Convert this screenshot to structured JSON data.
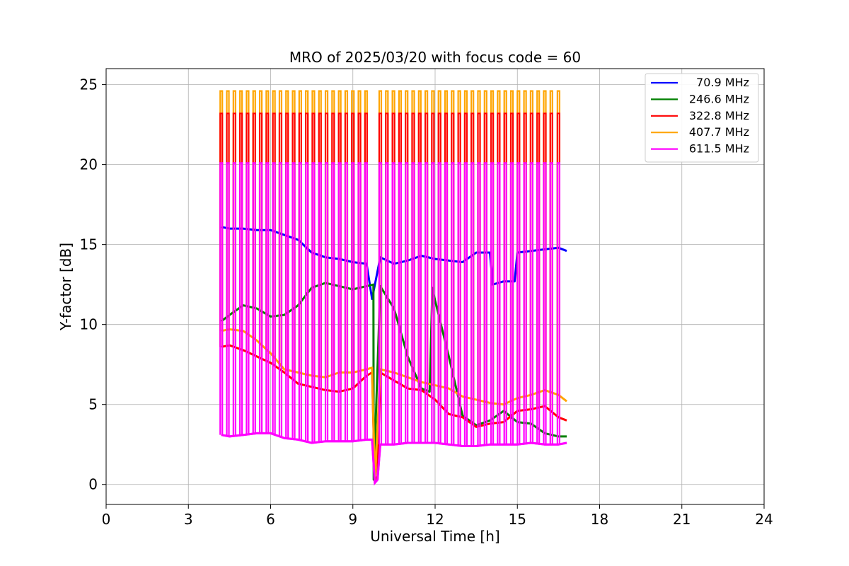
{
  "chart_data": {
    "type": "line",
    "title": "MRO of 2025/03/20 with focus code = 60",
    "xlabel": "Universal Time [h]",
    "ylabel": "Y-factor [dB]",
    "xlim": [
      0,
      24
    ],
    "ylim": [
      -1.25,
      26
    ],
    "xticks": [
      0,
      3,
      6,
      9,
      12,
      15,
      18,
      21,
      24
    ],
    "yticks": [
      0,
      5,
      10,
      15,
      20,
      25
    ],
    "grid": true,
    "legend_position": "top-right",
    "series": [
      {
        "name": "70.9 MHz",
        "color": "#0000ff",
        "x": [
          4.2,
          4.5,
          5.0,
          5.5,
          6.0,
          6.5,
          7.0,
          7.5,
          8.0,
          8.5,
          9.0,
          9.5,
          9.7,
          10.0,
          10.5,
          11.0,
          11.5,
          12.0,
          12.5,
          13.0,
          13.5,
          14.0,
          14.1,
          14.5,
          14.9,
          15.0,
          15.5,
          16.0,
          16.5,
          16.8
        ],
        "y": [
          16.1,
          16.0,
          16.0,
          15.9,
          15.9,
          15.6,
          15.3,
          14.5,
          14.2,
          14.1,
          13.9,
          13.8,
          11.6,
          14.2,
          13.8,
          14.0,
          14.3,
          14.1,
          14.0,
          13.9,
          14.5,
          14.5,
          12.5,
          12.7,
          12.7,
          14.5,
          14.6,
          14.7,
          14.8,
          14.6
        ]
      },
      {
        "name": "246.6 MHz",
        "color": "#008000",
        "x": [
          4.2,
          4.5,
          5.0,
          5.5,
          6.0,
          6.5,
          7.0,
          7.5,
          8.0,
          8.5,
          9.0,
          9.5,
          9.75,
          9.76,
          10.0,
          10.5,
          11.0,
          11.5,
          11.8,
          11.9,
          12.0,
          12.5,
          13.0,
          13.5,
          14.0,
          14.5,
          15.0,
          15.5,
          16.0,
          16.5,
          16.8
        ],
        "y": [
          10.2,
          10.6,
          11.2,
          11.0,
          10.5,
          10.6,
          11.2,
          12.3,
          12.6,
          12.4,
          12.2,
          12.4,
          12.5,
          0.3,
          12.4,
          11.0,
          8.0,
          6.0,
          5.8,
          12.3,
          11.5,
          8.0,
          4.3,
          3.7,
          4.0,
          4.6,
          3.9,
          3.8,
          3.2,
          3.0,
          3.0
        ]
      },
      {
        "name": "322.8 MHz",
        "color": "#ff0000",
        "x": [
          4.2,
          4.5,
          5.0,
          5.5,
          6.0,
          6.5,
          7.0,
          7.5,
          8.0,
          8.5,
          9.0,
          9.5,
          9.7,
          9.8,
          9.9,
          10.0,
          10.5,
          11.0,
          11.5,
          12.0,
          12.5,
          13.0,
          13.5,
          14.0,
          14.5,
          15.0,
          15.5,
          16.0,
          16.5,
          16.8
        ],
        "y": [
          8.6,
          8.7,
          8.4,
          8.0,
          7.6,
          7.0,
          6.3,
          6.1,
          5.9,
          5.8,
          6.0,
          6.8,
          7.0,
          0.2,
          0.5,
          7.0,
          6.5,
          6.0,
          5.9,
          5.3,
          4.4,
          4.2,
          3.6,
          3.8,
          3.9,
          4.6,
          4.7,
          4.9,
          4.2,
          4.0
        ]
      },
      {
        "name": "407.7 MHz",
        "color": "#ffa500",
        "x": [
          4.2,
          4.5,
          5.0,
          5.5,
          6.0,
          6.5,
          7.0,
          7.5,
          8.0,
          8.5,
          9.0,
          9.5,
          9.7,
          9.8,
          9.9,
          10.0,
          10.5,
          11.0,
          11.5,
          12.0,
          12.5,
          13.0,
          13.5,
          14.0,
          14.5,
          15.0,
          15.5,
          16.0,
          16.5,
          16.8
        ],
        "y": [
          9.6,
          9.7,
          9.6,
          9.0,
          8.2,
          7.2,
          7.0,
          6.8,
          6.7,
          7.0,
          7.0,
          7.2,
          7.3,
          0.3,
          3.5,
          7.2,
          7.0,
          6.7,
          6.4,
          6.2,
          6.0,
          5.5,
          5.3,
          5.1,
          5.0,
          5.4,
          5.6,
          5.9,
          5.6,
          5.2
        ]
      },
      {
        "name": "611.5 MHz",
        "color": "#ff00ff",
        "x": [
          4.2,
          4.5,
          5.0,
          5.5,
          6.0,
          6.5,
          7.0,
          7.5,
          8.0,
          8.5,
          9.0,
          9.5,
          9.7,
          9.8,
          9.9,
          10.0,
          10.5,
          11.0,
          11.5,
          12.0,
          12.5,
          13.0,
          13.5,
          14.0,
          14.5,
          15.0,
          15.5,
          16.0,
          16.5,
          16.8
        ],
        "y": [
          3.1,
          3.0,
          3.1,
          3.2,
          3.2,
          2.9,
          2.8,
          2.6,
          2.7,
          2.7,
          2.7,
          2.8,
          2.8,
          0.1,
          0.3,
          2.5,
          2.5,
          2.6,
          2.6,
          2.6,
          2.5,
          2.4,
          2.4,
          2.5,
          2.5,
          2.5,
          2.6,
          2.5,
          2.5,
          2.6
        ]
      }
    ],
    "calibration_spikes": {
      "times": [
        4.2,
        4.44,
        4.68,
        4.92,
        5.16,
        5.4,
        5.64,
        5.88,
        6.12,
        6.36,
        6.6,
        6.84,
        7.08,
        7.32,
        7.56,
        7.8,
        8.04,
        8.28,
        8.52,
        8.76,
        9.0,
        9.24,
        9.48,
        10.0,
        10.24,
        10.48,
        10.72,
        10.96,
        11.2,
        11.44,
        11.68,
        11.92,
        12.16,
        12.4,
        12.64,
        12.88,
        13.12,
        13.36,
        13.6,
        13.84,
        14.08,
        14.32,
        14.56,
        14.8,
        15.04,
        15.28,
        15.52,
        15.76,
        16.0,
        16.24,
        16.5
      ],
      "levels": [
        {
          "series": "407.7 MHz",
          "top": 24.6,
          "color": "#ffa500"
        },
        {
          "series": "322.8 MHz",
          "top": 23.2,
          "color": "#ff0000"
        },
        {
          "series": "611.5 MHz",
          "top": 20.1,
          "color": "#ff00ff"
        }
      ]
    }
  }
}
